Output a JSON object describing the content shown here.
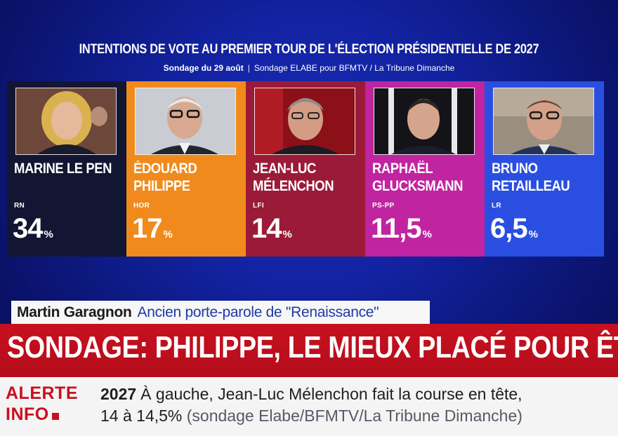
{
  "header": {
    "title": "INTENTIONS DE VOTE AU PREMIER TOUR DE L'ÉLECTION PRÉSIDENTIELLE DE 2027",
    "date": "Sondage du 29 août",
    "source": "Sondage ELABE pour BFMTV / La Tribune Dimanche"
  },
  "candidates": [
    {
      "name_line1": "MARINE LE PEN",
      "name_line2": "",
      "party": "RN",
      "score": "34",
      "unit": "%",
      "color": "#121633"
    },
    {
      "name_line1": "ÉDOUARD",
      "name_line2": "PHILIPPE",
      "party": "HOR",
      "score": "17",
      "unit": "%",
      "color": "#f08a1c"
    },
    {
      "name_line1": "JEAN-LUC",
      "name_line2": "MÉLENCHON",
      "party": "LFI",
      "score": "14",
      "unit": "%",
      "color": "#9a1a38"
    },
    {
      "name_line1": "RAPHAËL",
      "name_line2": "GLUCKSMANN",
      "party": "PS-PP",
      "score": "11,5",
      "unit": "%",
      "color": "#c024a0"
    },
    {
      "name_line1": "BRUNO",
      "name_line2": "RETAILLEAU",
      "party": "LR",
      "score": "6,5",
      "unit": "%",
      "color": "#2a4fe0"
    }
  ],
  "name_strap": {
    "name": "Martin Garagnon",
    "role": "Ancien porte-parole de \"Renaissance\""
  },
  "banner": {
    "text": "SONDAGE: PHILIPPE, LE MIEUX PLACÉ POUR ÊTRE"
  },
  "ticker": {
    "alert_line1": "ALERTE",
    "alert_line2": "INFO",
    "year": "2027",
    "line1": "À gauche, Jean-Luc Mélenchon fait la course en tête,",
    "line2_start": "14 à 14,5%",
    "line2_source": "(sondage Elabe/BFMTV/La Tribune Dimanche)"
  },
  "colors": {
    "background": "#1222a0",
    "banner": "#c8101f",
    "alert": "#c9101f",
    "role_text": "#1d3aa8"
  }
}
